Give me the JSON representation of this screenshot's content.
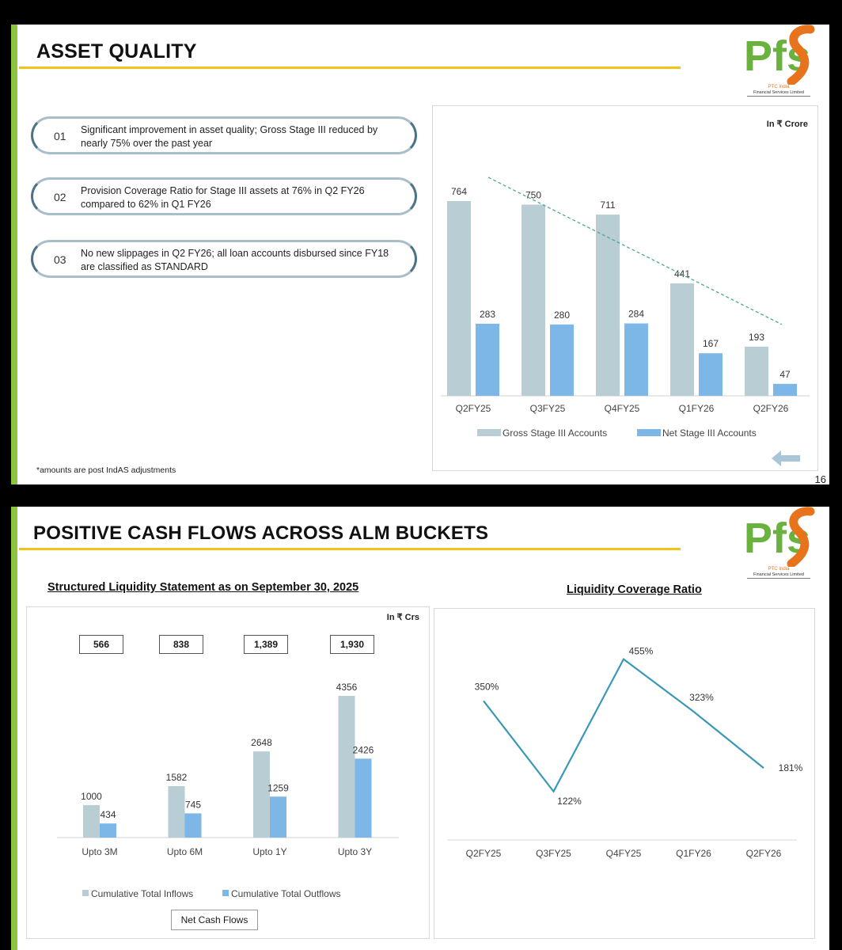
{
  "slide1": {
    "title": "ASSET QUALITY",
    "logo": {
      "mark": "Pfs",
      "line1": "PTC India",
      "line2": "Financial Services Limited"
    },
    "points": [
      {
        "num": "01",
        "text": "Significant improvement in asset quality; Gross Stage III reduced by nearly 75% over the past year"
      },
      {
        "num": "02",
        "text": "Provision Coverage Ratio for Stage III assets at 76% in Q2 FY26 compared to 62% in Q1 FY26"
      },
      {
        "num": "03",
        "text": "No new slippages in Q2 FY26; all loan accounts disbursed since FY18 are classified as STANDARD"
      }
    ],
    "unit": "In ₹ Crore",
    "footnote": "*amounts are post IndAS adjustments",
    "page_number": "16",
    "back_icon": "arrow-left-icon"
  },
  "slide2": {
    "title": "POSITIVE CASH FLOWS ACROSS ALM BUCKETS",
    "logo": {
      "mark": "Pfs",
      "line1": "PTC India",
      "line2": "Financial Services Limited"
    },
    "left_heading": "Structured Liquidity Statement as on September 30, 2025",
    "right_heading": "Liquidity Coverage Ratio",
    "unit": "In ₹ Crs",
    "net_cash_flows": [
      "566",
      "838",
      "1,389",
      "1,930"
    ],
    "net_label": "Net Cash Flows"
  },
  "colors": {
    "gross": "#b8cdd4",
    "net": "#7db7e8",
    "trend": "#4fa88a",
    "lcr_line": "#3a97b8",
    "accent_rule": "#f2c21b",
    "side_bar": "#8cc63f"
  },
  "chart_data": [
    {
      "type": "bar",
      "categories": [
        "Q2FY25",
        "Q3FY25",
        "Q4FY25",
        "Q1FY26",
        "Q2FY26"
      ],
      "series": [
        {
          "name": "Gross Stage III Accounts",
          "values": [
            764,
            750,
            711,
            441,
            193
          ]
        },
        {
          "name": "Net Stage III Accounts",
          "values": [
            283,
            280,
            284,
            167,
            47
          ]
        }
      ],
      "ylim": [
        0,
        764
      ],
      "grid": false,
      "legend": "bottom",
      "trendline": "dashed, over gross values",
      "title": "",
      "xlabel": "",
      "ylabel": ""
    },
    {
      "type": "bar",
      "categories": [
        "Upto 3M",
        "Upto 6M",
        "Upto 1Y",
        "Upto 3Y"
      ],
      "series": [
        {
          "name": "Cumulative Total Inflows",
          "values": [
            1000,
            1582,
            2648,
            4356
          ]
        },
        {
          "name": "Cumulative Total Outflows",
          "values": [
            434,
            745,
            1259,
            2426
          ]
        }
      ],
      "ylim": [
        0,
        4356
      ],
      "grid": false,
      "legend": "bottom",
      "title": "",
      "xlabel": "",
      "ylabel": ""
    },
    {
      "type": "line",
      "categories": [
        "Q2FY25",
        "Q3FY25",
        "Q4FY25",
        "Q1FY26",
        "Q2FY26"
      ],
      "series": [
        {
          "values": [
            350,
            122,
            455,
            323,
            181
          ]
        }
      ],
      "value_suffix": "%",
      "ylim": [
        0,
        500
      ],
      "grid": false,
      "title": "",
      "xlabel": "",
      "ylabel": ""
    }
  ]
}
